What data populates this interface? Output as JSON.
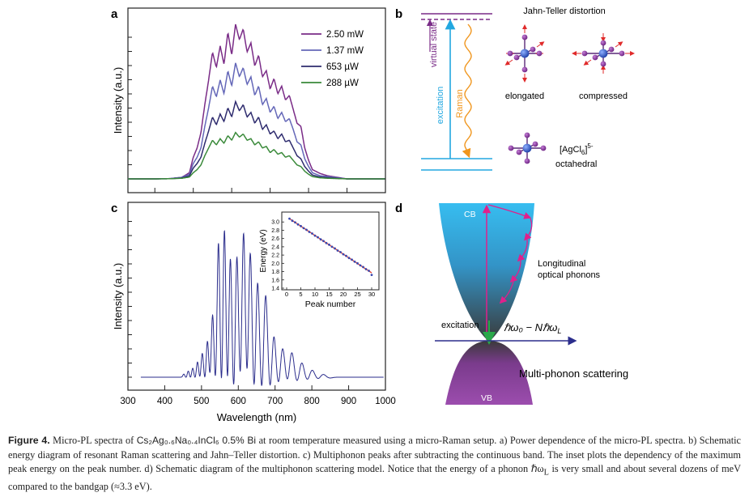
{
  "panel_labels": {
    "a": "a",
    "b": "b",
    "c": "c",
    "d": "d"
  },
  "chart_data": [
    {
      "panel": "a",
      "type": "line",
      "title": "",
      "xlabel": "",
      "ylabel": "Intensity (a.u.)",
      "xlim": [
        330,
        1000
      ],
      "legend_position": "top-right",
      "x": [
        350,
        400,
        440,
        470,
        490,
        500,
        510,
        520,
        530,
        540,
        550,
        560,
        570,
        580,
        590,
        600,
        610,
        620,
        630,
        640,
        650,
        660,
        670,
        680,
        690,
        700,
        710,
        720,
        730,
        740,
        750,
        760,
        770,
        780,
        790,
        800,
        810,
        830,
        850,
        900,
        1000
      ],
      "series": [
        {
          "name": "2.50 mW",
          "color": "#7a2c87",
          "values": [
            0,
            0,
            0.002,
            0.01,
            0.04,
            0.14,
            0.2,
            0.3,
            0.48,
            0.64,
            0.82,
            0.72,
            0.86,
            0.74,
            0.95,
            0.8,
            1.0,
            0.9,
            0.97,
            0.82,
            0.88,
            0.73,
            0.8,
            0.66,
            0.7,
            0.58,
            0.65,
            0.55,
            0.6,
            0.51,
            0.54,
            0.45,
            0.36,
            0.34,
            0.2,
            0.12,
            0.06,
            0.035,
            0.02,
            0,
            0
          ]
        },
        {
          "name": "1.37 mW",
          "color": "#6467b8",
          "values": [
            0,
            0,
            0.002,
            0.01,
            0.03,
            0.1,
            0.14,
            0.2,
            0.34,
            0.46,
            0.6,
            0.53,
            0.64,
            0.55,
            0.7,
            0.6,
            0.75,
            0.66,
            0.72,
            0.61,
            0.66,
            0.54,
            0.6,
            0.48,
            0.52,
            0.43,
            0.47,
            0.39,
            0.43,
            0.37,
            0.39,
            0.32,
            0.24,
            0.22,
            0.13,
            0.08,
            0.04,
            0.02,
            0.015,
            0,
            0
          ]
        },
        {
          "name": "653 µW",
          "color": "#2e2b6e",
          "values": [
            0,
            0,
            0.001,
            0.006,
            0.02,
            0.07,
            0.1,
            0.14,
            0.23,
            0.31,
            0.4,
            0.35,
            0.42,
            0.37,
            0.46,
            0.4,
            0.5,
            0.44,
            0.48,
            0.4,
            0.43,
            0.36,
            0.4,
            0.32,
            0.35,
            0.29,
            0.31,
            0.26,
            0.29,
            0.24,
            0.25,
            0.2,
            0.15,
            0.13,
            0.08,
            0.05,
            0.025,
            0.012,
            0.008,
            0,
            0
          ]
        },
        {
          "name": "288 µW",
          "color": "#3a8a3a",
          "values": [
            0,
            0,
            0.001,
            0.004,
            0.012,
            0.04,
            0.06,
            0.09,
            0.15,
            0.2,
            0.25,
            0.22,
            0.26,
            0.23,
            0.28,
            0.25,
            0.3,
            0.27,
            0.29,
            0.25,
            0.26,
            0.22,
            0.24,
            0.2,
            0.21,
            0.17,
            0.19,
            0.16,
            0.17,
            0.14,
            0.15,
            0.12,
            0.09,
            0.08,
            0.05,
            0.03,
            0.015,
            0.007,
            0.004,
            0,
            0
          ]
        }
      ]
    },
    {
      "panel": "c",
      "type": "line",
      "title": "",
      "xlabel": "Wavelength (nm)",
      "ylabel": "Intensity (a.u.)",
      "xlim": [
        300,
        1000
      ],
      "xticks": [
        "300",
        "400",
        "500",
        "600",
        "700",
        "800",
        "900",
        "1000"
      ],
      "series": [
        {
          "name": "",
          "color": "#2b2d8c",
          "peaks_x": [
            452,
            464,
            476,
            489,
            502,
            516,
            530,
            546,
            562,
            578,
            596,
            614,
            632,
            652,
            674,
            696,
            720,
            745,
            772,
            800,
            830
          ],
          "peaks_y": [
            0.02,
            0.04,
            0.06,
            0.1,
            0.16,
            0.24,
            0.42,
            0.88,
            1.0,
            0.85,
            0.82,
            0.99,
            0.9,
            0.67,
            0.56,
            0.3,
            0.2,
            0.17,
            0.1,
            0.05,
            0.02
          ]
        }
      ]
    },
    {
      "panel": "c-inset",
      "type": "scatter",
      "title": "",
      "xlabel": "Peak number",
      "ylabel": "Energy (eV)",
      "xlim": [
        0,
        32
      ],
      "ylim": [
        1.4,
        3.2
      ],
      "xticks": [
        "0",
        "5",
        "10",
        "15",
        "20",
        "25",
        "30"
      ],
      "yticks": [
        "1.4",
        "1.6",
        "1.8",
        "2.0",
        "2.2",
        "2.4",
        "2.6",
        "2.8",
        "3.0"
      ],
      "series": [
        {
          "name": "",
          "color": "#3a4ab0",
          "x": [
            1,
            2,
            3,
            4,
            5,
            6,
            7,
            8,
            9,
            10,
            11,
            12,
            13,
            14,
            15,
            16,
            17,
            18,
            19,
            20,
            21,
            22,
            23,
            24,
            25,
            26,
            27,
            28,
            29,
            30
          ],
          "values": [
            3.08,
            3.03,
            2.99,
            2.94,
            2.9,
            2.85,
            2.81,
            2.76,
            2.72,
            2.67,
            2.63,
            2.58,
            2.54,
            2.49,
            2.45,
            2.4,
            2.36,
            2.31,
            2.27,
            2.22,
            2.18,
            2.13,
            2.09,
            2.04,
            2.0,
            1.95,
            1.91,
            1.86,
            1.82,
            1.72
          ]
        },
        {
          "name": "",
          "type": "fit",
          "color": "#e03b2e",
          "x": [
            1,
            30
          ],
          "values": [
            3.08,
            1.77
          ]
        }
      ]
    }
  ],
  "panel_b": {
    "virtual_state": "virtual state",
    "excitation": "excitation",
    "raman": "Raman",
    "jt_title": "Jahn-Teller distortion",
    "elongated": "elongated",
    "compressed": "compressed",
    "formula_main": "[AgCl",
    "formula_sub": "6",
    "formula_sup": "]",
    "formula_charge": "5-",
    "octahedral": "octahedral"
  },
  "panel_d": {
    "cb": "CB",
    "vb": "VB",
    "lo_line1": "Longitudinal",
    "lo_line2": "optical phonons",
    "excitation": "excitation",
    "energy_expr": "ℏω₀ − Nℏω",
    "energy_sub": "L",
    "multiphonon": "Multi-phonon scattering"
  },
  "colors": {
    "cb_top": "#35b8eb",
    "vb": "#8a3f9a",
    "arrow_pink": "#e0208c",
    "arrow_green": "#2aa84a",
    "excitation_blue": "#22a7e0",
    "raman_orange": "#f0961e",
    "virtual_purple": "#7a2c87"
  },
  "caption": {
    "lead": "Figure 4.",
    "p1": " Micro-PL spectra of ",
    "chem": "Cs₂Ag₀.₆Na₀.₄InCl₆ 0.5% Bi",
    "p2": " at room temperature measured using a micro-Raman setup. a) Power dependence of the micro-PL spectra. b) Schematic energy diagram of resonant Raman scattering and Jahn–Teller distortion. c) Multiphonon peaks after subtracting the continuous band. The inset plots the dependency of the maximum peak energy on the peak number. d) Schematic diagram of the multiphonon scattering model. Notice that the energy of a phonon ℏω",
    "p2_sub": "L",
    "p3": " is very small and about several dozens of meV compared to the bandgap (≈3.3 eV)."
  }
}
